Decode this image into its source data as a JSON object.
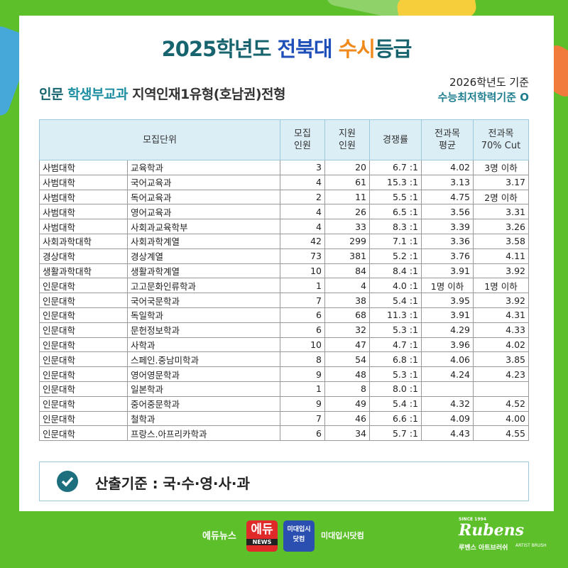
{
  "header": {
    "title_parts": [
      {
        "text": "2025학년도 ",
        "color": "#17646f"
      },
      {
        "text": "전북대 ",
        "color": "#1f4fb8"
      },
      {
        "text": "수시",
        "color": "#f08a1c"
      },
      {
        "text": "등급",
        "color": "#17646f"
      }
    ],
    "subtitle_parts": [
      {
        "text": "인문 ",
        "color": "#17646f"
      },
      {
        "text": "학생부교과 ",
        "color": "#1e8fa3"
      },
      {
        "text": "지역인재1유형(호남권)전형",
        "color": "#333333"
      }
    ],
    "base_year": "2026학년도 기준",
    "requirement": "수능최저학력기준 O"
  },
  "table": {
    "columns": [
      [
        "모집단위"
      ],
      [
        "모집",
        "인원"
      ],
      [
        "지원",
        "인원"
      ],
      [
        "경쟁률"
      ],
      [
        "전과목",
        "평균"
      ],
      [
        "전과목",
        "70% Cut"
      ]
    ],
    "rows": [
      [
        "사범대학",
        "교육학과",
        "3",
        "20",
        "6.7 :1",
        "4.02",
        "3명 이하"
      ],
      [
        "사범대학",
        "국어교육과",
        "4",
        "61",
        "15.3 :1",
        "3.13",
        "3.17"
      ],
      [
        "사범대학",
        "독어교육과",
        "2",
        "11",
        "5.5 :1",
        "4.75",
        "2명 이하"
      ],
      [
        "사범대학",
        "영어교육과",
        "4",
        "26",
        "6.5 :1",
        "3.56",
        "3.31"
      ],
      [
        "사범대학",
        "사회과교육학부",
        "4",
        "33",
        "8.3 :1",
        "3.39",
        "3.26"
      ],
      [
        "사회과학대학",
        "사회과학계열",
        "42",
        "299",
        "7.1 :1",
        "3.36",
        "3.58"
      ],
      [
        "경상대학",
        "경상계열",
        "73",
        "381",
        "5.2 :1",
        "3.76",
        "4.11"
      ],
      [
        "생활과학대학",
        "생활과학계열",
        "10",
        "84",
        "8.4 :1",
        "3.91",
        "3.92"
      ],
      [
        "인문대학",
        "고고문화인류학과",
        "1",
        "4",
        "4.0 :1",
        "1명 이하",
        "1명 이하"
      ],
      [
        "인문대학",
        "국어국문학과",
        "7",
        "38",
        "5.4 :1",
        "3.95",
        "3.92"
      ],
      [
        "인문대학",
        "독일학과",
        "6",
        "68",
        "11.3 :1",
        "3.91",
        "4.31"
      ],
      [
        "인문대학",
        "문헌정보학과",
        "6",
        "32",
        "5.3 :1",
        "4.29",
        "4.33"
      ],
      [
        "인문대학",
        "사학과",
        "10",
        "47",
        "4.7 :1",
        "3.96",
        "4.02"
      ],
      [
        "인문대학",
        "스페인.중남미학과",
        "8",
        "54",
        "6.8 :1",
        "4.06",
        "3.85"
      ],
      [
        "인문대학",
        "영어영문학과",
        "9",
        "48",
        "5.3 :1",
        "4.24",
        "4.23"
      ],
      [
        "인문대학",
        "일본학과",
        "1",
        "8",
        "8.0 :1",
        null,
        null
      ],
      [
        "인문대학",
        "중어중문학과",
        "9",
        "49",
        "5.4 :1",
        "4.32",
        "4.52"
      ],
      [
        "인문대학",
        "철학과",
        "7",
        "46",
        "6.6 :1",
        "4.09",
        "4.00"
      ],
      [
        "인문대학",
        "프랑스.아프리카학과",
        "6",
        "34",
        "5.7 :1",
        "4.43",
        "4.55"
      ]
    ]
  },
  "footer": {
    "basis": "산출기준 : 국·수·영·사·과"
  },
  "logos": {
    "edunews": "에듀뉴스",
    "edunews_mark": "에듀",
    "edunews_sub": "NEWS",
    "midae_mark": [
      "미대입시",
      "닷컴"
    ],
    "midae": "미대입시닷컴",
    "rubens_since": "SINCE 1994",
    "rubens": "Rubens",
    "rubens_korean": "루벤스 아트브러쉬",
    "rubens_sub": "ARTIST BRUSH"
  }
}
